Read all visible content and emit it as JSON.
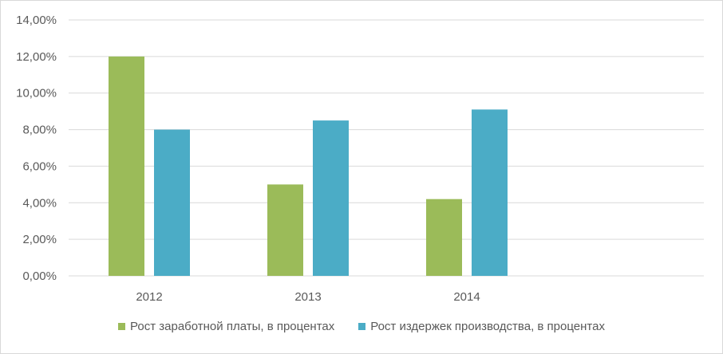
{
  "chart_data": {
    "type": "bar",
    "title": "",
    "xlabel": "",
    "ylabel": "",
    "categories": [
      "2012",
      "2013",
      "2014"
    ],
    "series": [
      {
        "name": "Рост заработной платы, в процентах",
        "values": [
          12.0,
          5.0,
          4.2
        ],
        "color": "#9bbb59"
      },
      {
        "name": "Рост издержек производства, в процентах",
        "values": [
          8.0,
          8.5,
          9.1
        ],
        "color": "#4bacc6"
      }
    ],
    "ylim": [
      0,
      14
    ],
    "yticks": [
      "0,00%",
      "2,00%",
      "4,00%",
      "6,00%",
      "8,00%",
      "10,00%",
      "12,00%",
      "14,00%"
    ],
    "grid": true,
    "legend": "bottom"
  }
}
